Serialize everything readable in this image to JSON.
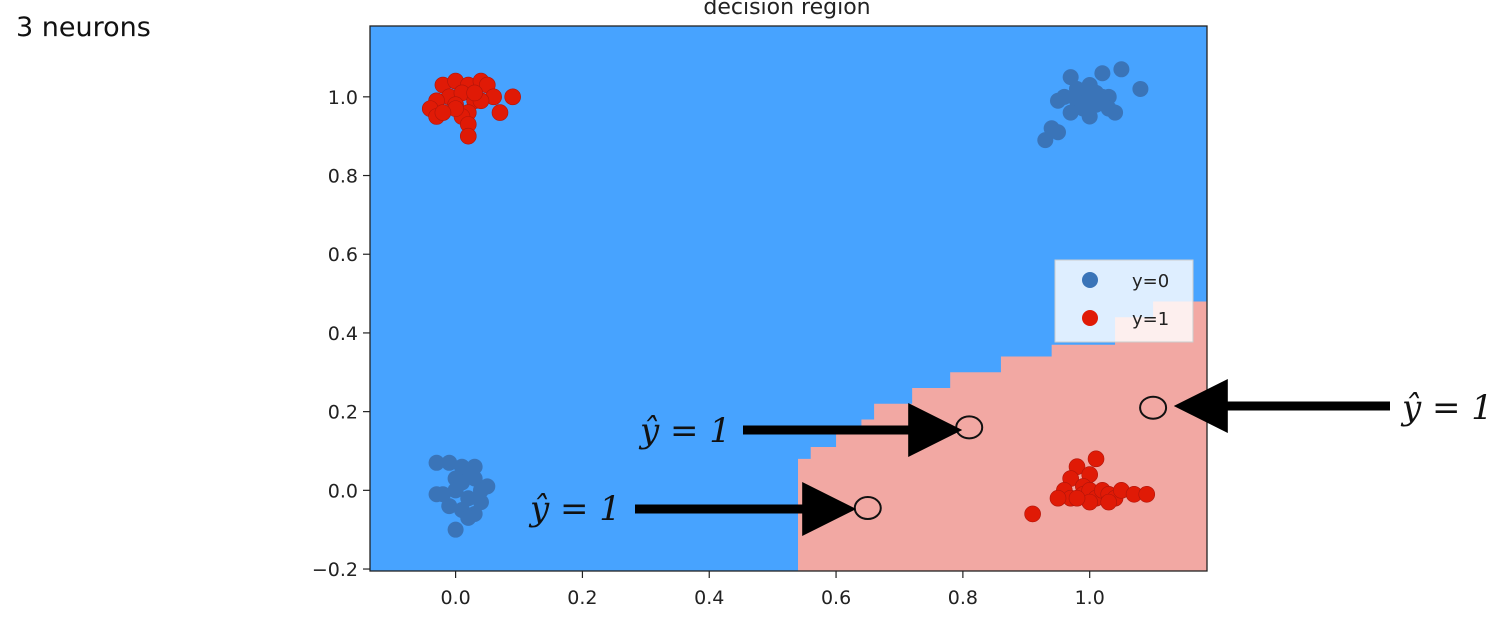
{
  "page": {
    "heading": "3 neurons"
  },
  "chart_data": {
    "type": "scatter",
    "title": "decision region",
    "xlabel": "",
    "ylabel": "",
    "xlim": [
      -0.135,
      1.185
    ],
    "ylim": [
      -0.205,
      1.18
    ],
    "xticks": [
      0.0,
      0.2,
      0.4,
      0.6,
      0.8,
      1.0
    ],
    "yticks": [
      -0.2,
      0.0,
      0.2,
      0.4,
      0.6,
      0.8,
      1.0
    ],
    "xtick_labels": [
      "0.0",
      "0.2",
      "0.4",
      "0.6",
      "0.8",
      "1.0"
    ],
    "ytick_labels": [
      "−0.2",
      "0.0",
      "0.2",
      "0.4",
      "0.6",
      "0.8",
      "1.0"
    ],
    "grid": false,
    "legend_position": "right",
    "colors": {
      "class0": "#3a74b8",
      "class1": "#e01a06",
      "region0": "#47a3ff",
      "region1": "#f2a8a3",
      "region1_light": "#fde4e2"
    },
    "decision_region_class1_boundary": [
      [
        0.54,
        -0.205
      ],
      [
        0.54,
        0.08
      ],
      [
        0.56,
        0.08
      ],
      [
        0.56,
        0.11
      ],
      [
        0.6,
        0.11
      ],
      [
        0.6,
        0.15
      ],
      [
        0.64,
        0.15
      ],
      [
        0.64,
        0.18
      ],
      [
        0.66,
        0.18
      ],
      [
        0.66,
        0.22
      ],
      [
        0.72,
        0.22
      ],
      [
        0.72,
        0.26
      ],
      [
        0.78,
        0.26
      ],
      [
        0.78,
        0.3
      ],
      [
        0.86,
        0.3
      ],
      [
        0.86,
        0.34
      ],
      [
        0.94,
        0.34
      ],
      [
        0.94,
        0.37
      ],
      [
        1.04,
        0.37
      ],
      [
        1.04,
        0.44
      ],
      [
        1.1,
        0.44
      ],
      [
        1.1,
        0.48
      ],
      [
        1.185,
        0.48
      ],
      [
        1.185,
        -0.205
      ]
    ],
    "series": [
      {
        "name": "y=0",
        "points": [
          [
            1.02,
            1.06
          ],
          [
            0.97,
            1.05
          ],
          [
            1.05,
            1.07
          ],
          [
            1.08,
            1.02
          ],
          [
            0.95,
            0.99
          ],
          [
            0.96,
            1.0
          ],
          [
            0.98,
            0.99
          ],
          [
            1.0,
            1.0
          ],
          [
            1.01,
            0.98
          ],
          [
            1.03,
            1.0
          ],
          [
            0.99,
            0.97
          ],
          [
            0.97,
            0.96
          ],
          [
            1.0,
            0.95
          ],
          [
            1.03,
            0.97
          ],
          [
            0.98,
            1.02
          ],
          [
            1.01,
            1.01
          ],
          [
            0.94,
            0.92
          ],
          [
            0.95,
            0.91
          ],
          [
            0.93,
            0.89
          ],
          [
            1.04,
            0.96
          ],
          [
            1.0,
            1.03
          ],
          [
            1.02,
            1.0
          ],
          [
            -0.03,
            0.07
          ],
          [
            -0.01,
            0.07
          ],
          [
            0.01,
            0.06
          ],
          [
            0.03,
            0.06
          ],
          [
            0.02,
            0.04
          ],
          [
            0.0,
            0.03
          ],
          [
            0.01,
            0.02
          ],
          [
            0.03,
            0.03
          ],
          [
            0.04,
            0.0
          ],
          [
            0.0,
            0.0
          ],
          [
            -0.02,
            -0.01
          ],
          [
            0.02,
            -0.02
          ],
          [
            0.04,
            -0.03
          ],
          [
            0.01,
            -0.05
          ],
          [
            -0.01,
            -0.04
          ],
          [
            0.03,
            -0.06
          ],
          [
            0.02,
            -0.07
          ],
          [
            0.0,
            -0.1
          ],
          [
            -0.03,
            -0.01
          ],
          [
            0.05,
            0.01
          ]
        ]
      },
      {
        "name": "y=1",
        "points": [
          [
            -0.02,
            1.03
          ],
          [
            0.0,
            1.04
          ],
          [
            0.02,
            1.03
          ],
          [
            -0.01,
            1.0
          ],
          [
            0.01,
            1.01
          ],
          [
            0.0,
            0.98
          ],
          [
            -0.03,
            0.99
          ],
          [
            -0.04,
            0.97
          ],
          [
            0.03,
            0.99
          ],
          [
            0.02,
            0.96
          ],
          [
            0.01,
            0.95
          ],
          [
            0.04,
            1.04
          ],
          [
            0.05,
            1.03
          ],
          [
            0.06,
            1.0
          ],
          [
            0.04,
            0.99
          ],
          [
            0.09,
            1.0
          ],
          [
            0.07,
            0.96
          ],
          [
            0.02,
            0.93
          ],
          [
            0.02,
            0.9
          ],
          [
            -0.03,
            0.95
          ],
          [
            0.0,
            0.97
          ],
          [
            -0.02,
            0.96
          ],
          [
            0.03,
            1.01
          ],
          [
            1.01,
            0.08
          ],
          [
            0.98,
            0.06
          ],
          [
            1.0,
            0.04
          ],
          [
            0.97,
            0.03
          ],
          [
            0.99,
            0.01
          ],
          [
            0.96,
            0.0
          ],
          [
            0.97,
            -0.02
          ],
          [
            0.99,
            -0.01
          ],
          [
            1.0,
            0.0
          ],
          [
            1.01,
            -0.02
          ],
          [
            1.02,
            0.0
          ],
          [
            1.03,
            -0.01
          ],
          [
            1.04,
            -0.02
          ],
          [
            1.05,
            0.0
          ],
          [
            1.07,
            -0.01
          ],
          [
            1.09,
            -0.01
          ],
          [
            1.03,
            -0.03
          ],
          [
            1.0,
            -0.03
          ],
          [
            0.98,
            -0.02
          ],
          [
            0.95,
            -0.02
          ],
          [
            0.91,
            -0.06
          ]
        ]
      }
    ],
    "annotations": [
      {
        "label": "ŷ = 1",
        "target": [
          0.81,
          0.16
        ]
      },
      {
        "label": "ŷ = 1",
        "target": [
          0.65,
          -0.045
        ]
      },
      {
        "label": "ŷ = 1",
        "target": [
          1.1,
          0.21
        ]
      }
    ]
  }
}
